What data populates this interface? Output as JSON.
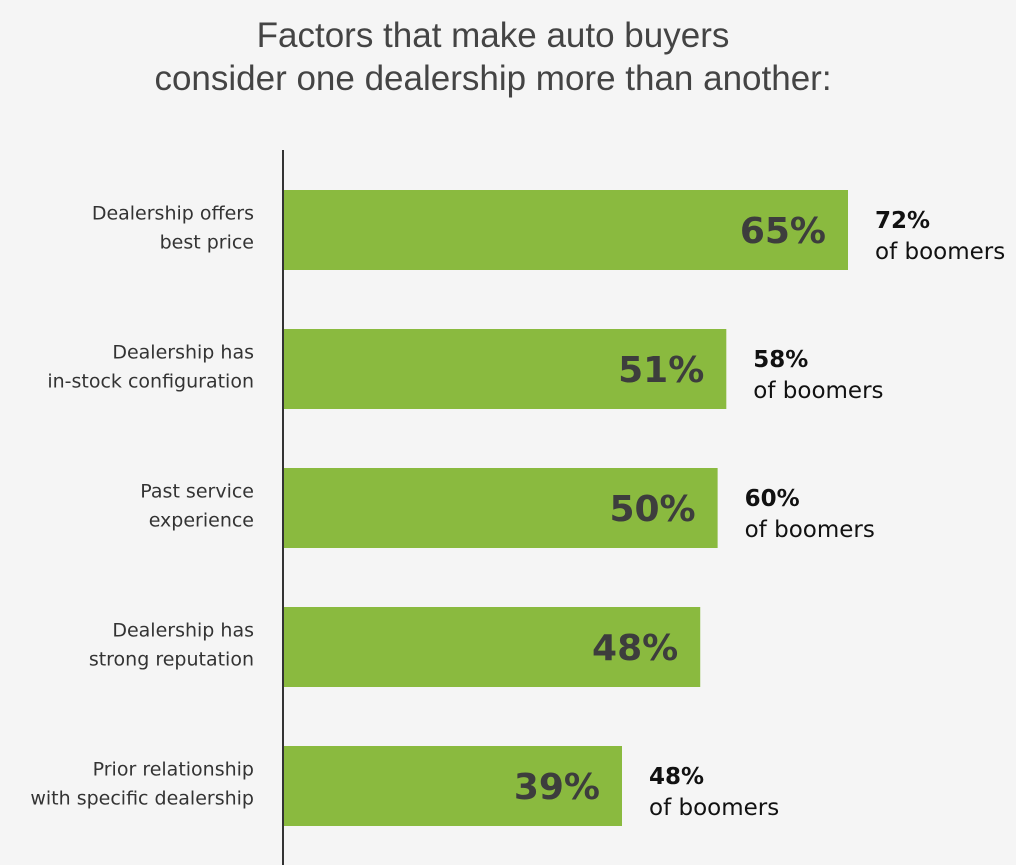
{
  "chart_data": {
    "type": "bar",
    "orientation": "horizontal",
    "title": [
      "Factors that make auto buyers",
      "consider one dealership more than another:"
    ],
    "categories": [
      [
        "Dealership offers",
        "best price"
      ],
      [
        "Dealership has",
        "in-stock configuration"
      ],
      [
        "Past service",
        "experience"
      ],
      [
        "Dealership has",
        "strong reputation"
      ],
      [
        "Prior relationship",
        "with specific dealership"
      ]
    ],
    "values": [
      65,
      51,
      50,
      48,
      39
    ],
    "value_labels": [
      "65%",
      "51%",
      "50%",
      "48%",
      "39%"
    ],
    "annotations": [
      {
        "value": "72%",
        "text": "of boomers"
      },
      {
        "value": "58%",
        "text": "of boomers"
      },
      {
        "value": "60%",
        "text": "of boomers"
      },
      null,
      {
        "value": "48%",
        "text": "of boomers"
      }
    ],
    "bar_color": "#8aba3f",
    "value_label_color": "#3d3d3d",
    "grid": false,
    "legend": "none"
  }
}
